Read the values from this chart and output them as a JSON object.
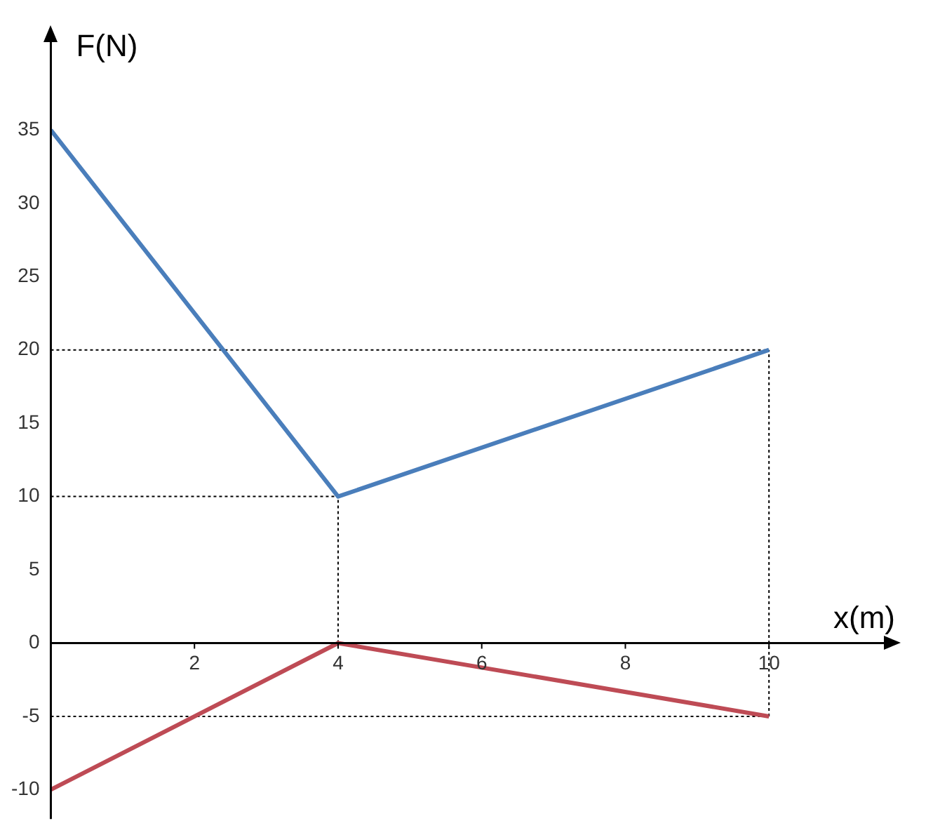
{
  "chart_data": {
    "type": "line",
    "xlabel": "x(m)",
    "ylabel": "F(N)",
    "x": [
      0,
      4,
      10
    ],
    "series": [
      {
        "color": "#4a7ebb",
        "values": [
          35,
          10,
          20
        ]
      },
      {
        "color": "#be4b55",
        "values": [
          -10,
          0,
          -5
        ]
      }
    ],
    "xlim": [
      0,
      11.6
    ],
    "ylim": [
      -12,
      41
    ],
    "xticks": [
      2,
      4,
      6,
      8,
      10
    ],
    "yticks": [
      -10,
      -5,
      0,
      5,
      10,
      15,
      20,
      25,
      30,
      35
    ],
    "grid": false,
    "legend": false,
    "marker": "none",
    "line_style": "solid",
    "ref_lines": [
      {
        "axis": "y",
        "value": 20,
        "line_style": "dotted",
        "color": "#000000"
      },
      {
        "axis": "y",
        "value": 10,
        "line_style": "dotted",
        "color": "#000000"
      },
      {
        "axis": "y",
        "value": -5,
        "line_style": "dotted",
        "color": "#000000"
      },
      {
        "axis": "x",
        "value": 4,
        "line_style": "dotted",
        "color": "#000000"
      },
      {
        "axis": "x",
        "value": 10,
        "line_style": "dotted",
        "color": "#000000"
      }
    ]
  }
}
